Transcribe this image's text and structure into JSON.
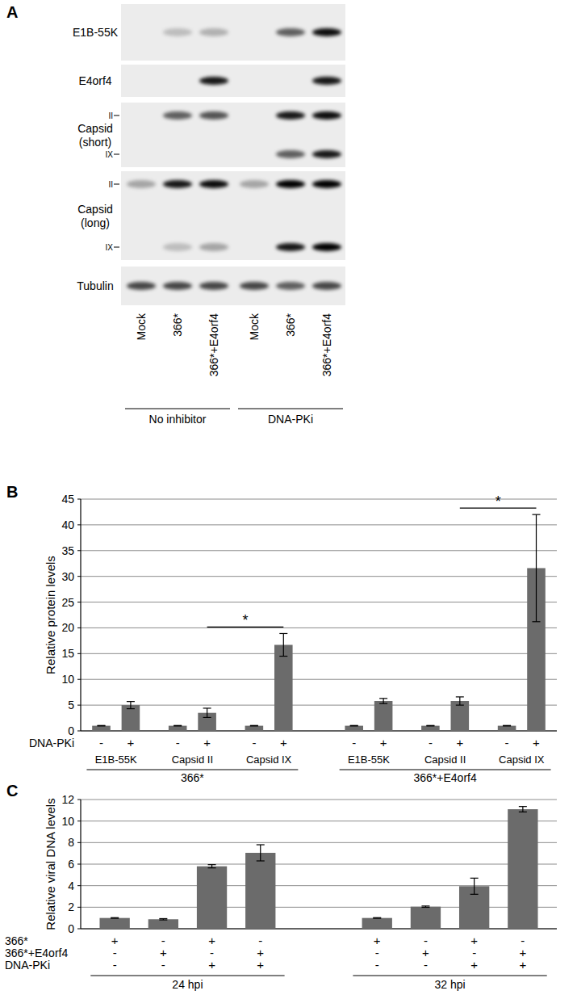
{
  "blot": {
    "panel_label": "A",
    "lanes": [
      "Mock",
      "366*",
      "366*+E4orf4",
      "Mock",
      "366*",
      "366*+E4orf4"
    ],
    "groups": [
      {
        "label": "No inhibitor",
        "span": [
          0,
          2
        ]
      },
      {
        "label": "DNA-PKi",
        "span": [
          3,
          5
        ]
      }
    ],
    "rows": [
      {
        "label": [
          "E1B-55K"
        ],
        "bands": [
          {
            "intensity": [
              0,
              0.2,
              0.25,
              0,
              0.6,
              0.95
            ]
          }
        ]
      },
      {
        "label": [
          "E4orf4"
        ],
        "bands": [
          {
            "intensity": [
              0,
              0,
              0.9,
              0,
              0,
              0.9
            ]
          }
        ]
      },
      {
        "label": [
          "Capsid",
          "(short)"
        ],
        "bands": [
          {
            "marker": "II",
            "intensity": [
              0,
              0.6,
              0.65,
              0,
              0.9,
              0.95
            ]
          },
          {
            "marker": "IX",
            "intensity": [
              0,
              0,
              0,
              0,
              0.6,
              0.9
            ]
          }
        ]
      },
      {
        "label": [
          "Capsid",
          "(long)"
        ],
        "bands": [
          {
            "marker": "II",
            "intensity": [
              0.3,
              0.9,
              0.95,
              0.3,
              1,
              1
            ]
          },
          {
            "marker": "IX",
            "intensity": [
              0,
              0.2,
              0.3,
              0,
              0.9,
              1
            ]
          }
        ]
      },
      {
        "label": [
          "Tubulin"
        ],
        "bands": [
          {
            "intensity": [
              0.7,
              0.7,
              0.7,
              0.7,
              0.6,
              0.7
            ]
          }
        ]
      }
    ]
  },
  "chart_data": [
    {
      "type": "bar",
      "panel_label": "B",
      "y_label": "Relative protein levels",
      "ylim": [
        0,
        45
      ],
      "yticks": [
        0,
        5,
        10,
        15,
        20,
        25,
        30,
        35,
        40,
        45
      ],
      "grid": true,
      "series": [
        {
          "color": "#6b6b6b",
          "values": [
            1,
            5.0,
            1,
            3.5,
            1,
            16.7,
            1,
            5.8,
            1,
            5.8,
            1,
            31.6
          ],
          "errors": [
            0.05,
            0.7,
            0.05,
            0.9,
            0.05,
            2.2,
            0.05,
            0.5,
            0.05,
            0.8,
            0.05,
            10.4
          ]
        }
      ],
      "x_rows": [
        {
          "label": "DNA-PKi",
          "marks": [
            "-",
            "+",
            "-",
            "+",
            "-",
            "+",
            "-",
            "+",
            "-",
            "+",
            "-",
            "+"
          ]
        }
      ],
      "subgroups": [
        {
          "label": "E1B-55K",
          "span": [
            0,
            1
          ]
        },
        {
          "label": "Capsid II",
          "span": [
            2,
            3
          ]
        },
        {
          "label": "Capsid IX",
          "span": [
            4,
            5
          ]
        },
        {
          "label": "E1B-55K",
          "span": [
            6,
            7
          ]
        },
        {
          "label": "Capsid II",
          "span": [
            8,
            9
          ]
        },
        {
          "label": "Capsid IX",
          "span": [
            10,
            11
          ]
        }
      ],
      "groups": [
        {
          "label": "366*",
          "span": [
            0,
            5
          ]
        },
        {
          "label": "366*+E4orf4",
          "span": [
            6,
            11
          ]
        }
      ],
      "annotations": [
        {
          "text": "*",
          "between": [
            3,
            5
          ]
        },
        {
          "text": "*",
          "between": [
            9,
            11
          ]
        }
      ]
    },
    {
      "type": "bar",
      "panel_label": "C",
      "y_label": "Relative viral DNA levels",
      "ylim": [
        0,
        12
      ],
      "yticks": [
        0,
        2,
        4,
        6,
        8,
        10,
        12
      ],
      "grid": true,
      "series": [
        {
          "color": "#6b6b6b",
          "values": [
            1.0,
            0.88,
            5.8,
            7.05,
            1.0,
            2.05,
            3.95,
            11.1
          ],
          "errors": [
            0.03,
            0.06,
            0.15,
            0.75,
            0.03,
            0.06,
            0.75,
            0.25
          ]
        }
      ],
      "x_rows": [
        {
          "label": "366*",
          "marks": [
            "+",
            "-",
            "+",
            "-",
            "+",
            "-",
            "+",
            "-"
          ]
        },
        {
          "label": "366*+E4orf4",
          "marks": [
            "-",
            "+",
            "-",
            "+",
            "-",
            "+",
            "-",
            "+"
          ]
        },
        {
          "label": "DNA-PKi",
          "marks": [
            "-",
            "-",
            "+",
            "+",
            "-",
            "-",
            "+",
            "+"
          ]
        }
      ],
      "groups": [
        {
          "label": "24 hpi",
          "span": [
            0,
            3
          ]
        },
        {
          "label": "32 hpi",
          "span": [
            4,
            7
          ]
        }
      ]
    }
  ]
}
